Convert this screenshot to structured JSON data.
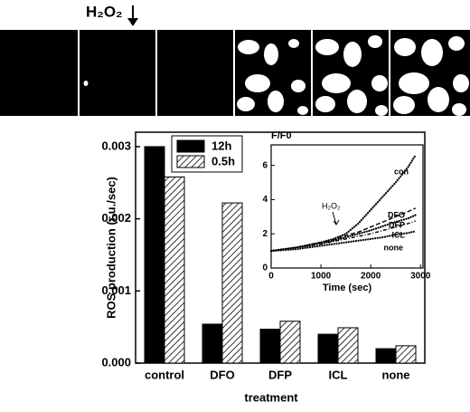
{
  "strip": {
    "label": "H₂O₂"
  },
  "chart_data": [
    {
      "type": "bar",
      "categories": [
        "control",
        "DFO",
        "DFP",
        "ICL",
        "none"
      ],
      "series": [
        {
          "name": "12h",
          "color": "#000000",
          "values": [
            0.003,
            0.00054,
            0.00047,
            0.0004,
            0.0002
          ]
        },
        {
          "name": "0.5h",
          "color": "#000000",
          "pattern": "hatch",
          "values": [
            0.00258,
            0.00222,
            0.00058,
            0.00049,
            0.00024
          ]
        }
      ],
      "ylim": [
        0,
        0.0032
      ],
      "yticks": [
        {
          "value": 0,
          "label": "0.000"
        },
        0.001,
        0.002,
        0.003
      ],
      "ylabel": "ROS production (r.u./sec)",
      "xlabel": "treatment",
      "legend": "upper left"
    },
    {
      "type": "line",
      "title": "F/F0",
      "xlabel": "Time (sec)",
      "annotation": "H₂O₂",
      "x": [
        0,
        250,
        500,
        750,
        1000,
        1250,
        1500,
        1750,
        2000,
        2250,
        2500,
        2750,
        2900
      ],
      "series": [
        {
          "name": "con",
          "color": "#000000",
          "style": "dotted",
          "values": [
            1.0,
            1.1,
            1.2,
            1.35,
            1.5,
            1.7,
            2.0,
            2.6,
            3.4,
            4.2,
            5.0,
            5.9,
            6.6
          ]
        },
        {
          "name": "DFO",
          "color": "#000000",
          "style": "dashed",
          "values": [
            1.0,
            1.1,
            1.2,
            1.35,
            1.5,
            1.65,
            1.9,
            2.1,
            2.4,
            2.7,
            3.0,
            3.3,
            3.5
          ]
        },
        {
          "name": "DFP",
          "color": "#000000",
          "style": "dotted",
          "values": [
            1.0,
            1.1,
            1.2,
            1.3,
            1.45,
            1.6,
            1.8,
            2.0,
            2.2,
            2.45,
            2.7,
            2.9,
            3.1
          ]
        },
        {
          "name": "ICL",
          "color": "#000000",
          "style": "dashdot",
          "values": [
            1.0,
            1.1,
            1.2,
            1.3,
            1.4,
            1.55,
            1.7,
            1.85,
            2.0,
            2.2,
            2.4,
            2.6,
            2.75
          ]
        },
        {
          "name": "none",
          "color": "#000000",
          "style": "dotted",
          "values": [
            1.0,
            1.05,
            1.1,
            1.2,
            1.3,
            1.4,
            1.5,
            1.6,
            1.7,
            1.8,
            1.95,
            2.05,
            2.15
          ]
        }
      ],
      "xlim": [
        0,
        3050
      ],
      "ylim": [
        0,
        7.2
      ],
      "xticks": [
        0,
        1000,
        2000,
        3000
      ],
      "yticks": [
        0,
        2,
        4,
        6
      ]
    }
  ]
}
